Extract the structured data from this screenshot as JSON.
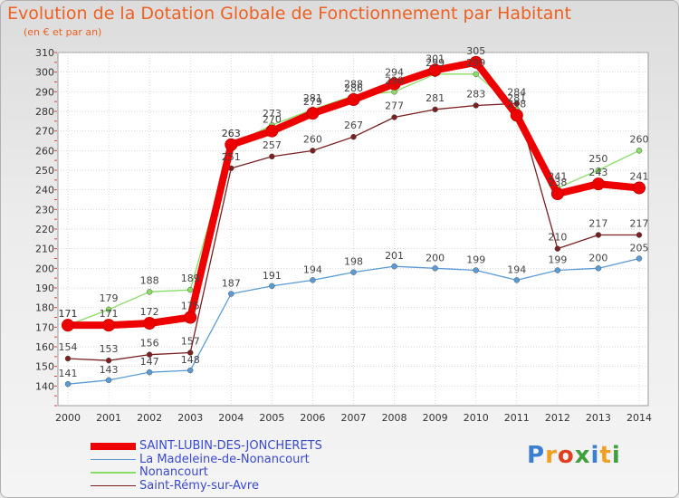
{
  "chart_data": {
    "type": "line",
    "title": "Evolution de la Dotation Globale de Fonctionnement par Habitant",
    "subtitle": "(en € et par an)",
    "x": [
      "2000",
      "2001",
      "2002",
      "2003",
      "2004",
      "2005",
      "2006",
      "2007",
      "2008",
      "2009",
      "2010",
      "2011",
      "2012",
      "2013",
      "2014"
    ],
    "ylim": [
      130,
      310
    ],
    "yticks": [
      140,
      150,
      160,
      170,
      180,
      190,
      200,
      210,
      220,
      230,
      240,
      250,
      260,
      270,
      280,
      290,
      300,
      310
    ],
    "ytick_labels": [
      "140",
      "150",
      "160",
      "170",
      "180",
      "190",
      "200",
      "210",
      "220",
      "230",
      "240",
      "250",
      "260",
      "270",
      "280",
      "290",
      "300",
      "310"
    ],
    "grid": true,
    "series": [
      {
        "name": "SAINT-LUBIN-DES-JONCHERETS",
        "color": "#ee0000",
        "values": [
          171,
          171,
          172,
          175,
          263,
          270,
          279,
          286,
          294,
          301,
          305,
          278,
          238,
          243,
          241
        ],
        "labels": [
          "171",
          "171",
          "172",
          "175",
          "263",
          "270",
          "279",
          "286",
          "294",
          "301",
          "305",
          "278",
          "238",
          "243",
          "241"
        ]
      },
      {
        "name": "La Madeleine-de-Nonancourt",
        "color": "#5b9bd5",
        "values": [
          141,
          143,
          147,
          148,
          187,
          191,
          194,
          198,
          201,
          200,
          199,
          194,
          199,
          200,
          205
        ],
        "labels": [
          "141",
          "143",
          "147",
          "148",
          "187",
          "191",
          "194",
          "198",
          "201",
          "200",
          "199",
          "194",
          "199",
          "200",
          "205"
        ]
      },
      {
        "name": "Nonancourt",
        "color": "#88dd66",
        "values": [
          171,
          179,
          188,
          189,
          263,
          273,
          281,
          288,
          290,
          299,
          299,
          281,
          241,
          250,
          260
        ],
        "labels": [
          "171",
          "179",
          "188",
          "189",
          "263",
          "273",
          "281",
          "288",
          "290",
          "299",
          "299",
          "281",
          "241",
          "250",
          "260"
        ]
      },
      {
        "name": "Saint-Rémy-sur-Avre",
        "color": "#7a2020",
        "values": [
          154,
          153,
          156,
          157,
          251,
          257,
          260,
          267,
          277,
          281,
          283,
          284,
          210,
          217,
          217
        ],
        "labels": [
          "154",
          "153",
          "156",
          "157",
          "251",
          "257",
          "260",
          "267",
          "277",
          "281",
          "283",
          "284",
          "210",
          "217",
          "217"
        ]
      }
    ]
  },
  "logo": {
    "letters": [
      "P",
      "r",
      "o",
      "x",
      "i",
      "t",
      "i"
    ]
  }
}
